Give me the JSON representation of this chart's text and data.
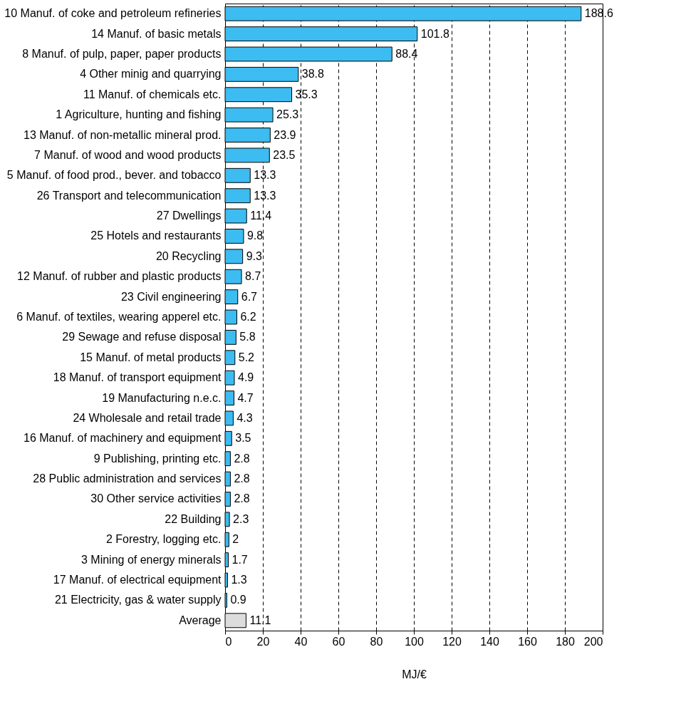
{
  "chart_data": {
    "type": "bar",
    "orientation": "horizontal",
    "xlabel": "MJ/€",
    "categories": [
      "10 Manuf. of coke and petroleum refineries",
      "14 Manuf. of basic metals",
      "8 Manuf. of pulp, paper, paper products",
      "4 Other minig and quarrying",
      "11 Manuf. of chemicals etc.",
      "1 Agriculture, hunting and fishing",
      "13 Manuf. of non-metallic mineral prod.",
      "7 Manuf. of wood and wood products",
      "5 Manuf. of food prod., bever. and tobacco",
      "26 Transport and telecommunication",
      "27 Dwellings",
      "25 Hotels and restaurants",
      "20 Recycling",
      "12 Manuf. of rubber and plastic products",
      "23 Civil engineering",
      "6 Manuf. of textiles, wearing apperel etc.",
      "29 Sewage and refuse disposal",
      "15 Manuf. of metal products",
      "18 Manuf. of transport equipment",
      "19 Manufacturing n.e.c.",
      "24 Wholesale and retail trade",
      "16 Manuf. of machinery and equipment",
      "9 Publishing, printing etc.",
      "28 Public administration and services",
      "30 Other service activities",
      "22 Building",
      "2 Forestry, logging etc.",
      "3 Mining of energy minerals",
      "17 Manuf. of electrical equipment",
      "21 Electricity, gas & water supply",
      "Average"
    ],
    "values": [
      188.6,
      101.8,
      88.4,
      38.8,
      35.3,
      25.3,
      23.9,
      23.5,
      13.3,
      13.3,
      11.4,
      9.8,
      9.3,
      8.7,
      6.7,
      6.2,
      5.8,
      5.2,
      4.9,
      4.7,
      4.3,
      3.5,
      2.8,
      2.8,
      2.8,
      2.3,
      2,
      1.7,
      1.3,
      0.9,
      11.1
    ],
    "colors": [
      "#3cbcf0",
      "#3cbcf0",
      "#3cbcf0",
      "#3cbcf0",
      "#3cbcf0",
      "#3cbcf0",
      "#3cbcf0",
      "#3cbcf0",
      "#3cbcf0",
      "#3cbcf0",
      "#3cbcf0",
      "#3cbcf0",
      "#3cbcf0",
      "#3cbcf0",
      "#3cbcf0",
      "#3cbcf0",
      "#3cbcf0",
      "#3cbcf0",
      "#3cbcf0",
      "#3cbcf0",
      "#3cbcf0",
      "#3cbcf0",
      "#3cbcf0",
      "#3cbcf0",
      "#3cbcf0",
      "#3cbcf0",
      "#3cbcf0",
      "#3cbcf0",
      "#3cbcf0",
      "#3cbcf0",
      "#dcdcdc"
    ],
    "xlim": [
      0,
      200
    ],
    "xticks": [
      0,
      20,
      40,
      60,
      80,
      100,
      120,
      140,
      160,
      180,
      200
    ],
    "grid": "x",
    "data_labels": true
  }
}
